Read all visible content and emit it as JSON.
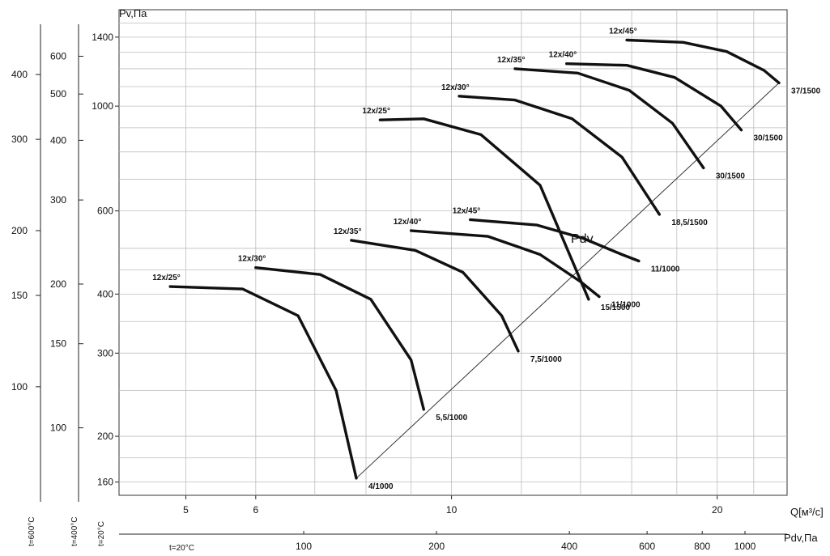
{
  "chart_data": {
    "type": "line",
    "title": "",
    "ylabel": "Pv,Па",
    "xlabel": "Q[м³/с]",
    "x2label": "Pdv,Па",
    "diagonal_label": "Pdv",
    "x_axis": {
      "scale": "log",
      "range": [
        4.2,
        24
      ],
      "ticks": [
        5,
        6,
        10,
        20
      ]
    },
    "y_axis": {
      "scale": "log",
      "range": [
        150,
        1600
      ],
      "ticks": [
        160,
        200,
        300,
        400,
        600,
        1000,
        1400
      ]
    },
    "pdv_axis": {
      "scale": "log",
      "ticks": [
        100,
        200,
        400,
        600,
        800,
        1000
      ],
      "condition": "t=20°C"
    },
    "extra_y_axes": [
      {
        "ticks": [
          100,
          150,
          200,
          300,
          400,
          500,
          600
        ],
        "condition": "t=20°C"
      },
      {
        "ticks": [
          100,
          150,
          200,
          300,
          400
        ],
        "condition": "t=400°C"
      },
      {
        "ticks": [
          100,
          150,
          200,
          300,
          400
        ],
        "condition": "t=600°C"
      }
    ],
    "grid": true,
    "series": [
      {
        "name": "12x/25°",
        "power": "4/1000",
        "x": [
          4.8,
          5.8,
          6.7,
          7.4,
          7.8
        ],
        "y": [
          415,
          410,
          360,
          250,
          163
        ]
      },
      {
        "name": "12x/30°",
        "power": "5,5/1000",
        "x": [
          6.0,
          7.1,
          8.1,
          9.0,
          9.3
        ],
        "y": [
          455,
          440,
          390,
          290,
          228
        ]
      },
      {
        "name": "12x/35°",
        "power": "7,5/1000",
        "x": [
          7.7,
          9.1,
          10.3,
          11.4,
          11.9
        ],
        "y": [
          520,
          495,
          445,
          360,
          303
        ]
      },
      {
        "name": "12x/40°",
        "power": "11/1000",
        "x": [
          9.0,
          11.0,
          12.6,
          14.0,
          14.7
        ],
        "y": [
          545,
          530,
          485,
          425,
          395
        ]
      },
      {
        "name": "12x/45°",
        "power": "11/1000",
        "x": [
          10.5,
          12.5,
          14.1,
          15.6,
          16.3
        ],
        "y": [
          575,
          560,
          525,
          485,
          470
        ]
      },
      {
        "name": "12x/25°",
        "power": "15/1500",
        "x": [
          8.3,
          9.3,
          10.8,
          12.6,
          14.3
        ],
        "y": [
          935,
          940,
          870,
          680,
          390
        ]
      },
      {
        "name": "12x/30°",
        "power": "18,5/1500",
        "x": [
          10.2,
          11.8,
          13.7,
          15.6,
          17.2
        ],
        "y": [
          1050,
          1030,
          940,
          780,
          590
        ]
      },
      {
        "name": "12x/35°",
        "power": "30/1500",
        "x": [
          11.8,
          13.9,
          15.9,
          17.8,
          19.3
        ],
        "y": [
          1200,
          1175,
          1080,
          920,
          740
        ]
      },
      {
        "name": "12x/40°",
        "power": "30/1500",
        "x": [
          13.5,
          15.8,
          17.9,
          20.2,
          21.3
        ],
        "y": [
          1230,
          1220,
          1150,
          1000,
          890
        ]
      },
      {
        "name": "12x/45°",
        "power": "37/1500",
        "x": [
          15.8,
          18.3,
          20.5,
          22.6,
          23.5
        ],
        "y": [
          1380,
          1365,
          1305,
          1190,
          1120
        ]
      }
    ],
    "diagonal": {
      "x": [
        7.8,
        23.5
      ],
      "y": [
        163,
        1120
      ]
    }
  }
}
